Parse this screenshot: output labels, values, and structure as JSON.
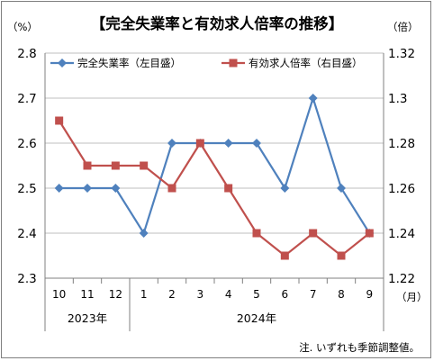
{
  "chart_data": {
    "type": "line",
    "title": "【完全失業率と有効求人倍率の推移】",
    "left_unit": "（%）",
    "right_unit": "（倍）",
    "x_unit": "（月）",
    "categories": [
      "10",
      "11",
      "12",
      "1",
      "2",
      "3",
      "4",
      "5",
      "6",
      "7",
      "8",
      "9"
    ],
    "year_labels": [
      {
        "label": "2023年",
        "start_index": 0,
        "end_index": 2
      },
      {
        "label": "2024年",
        "start_index": 3,
        "end_index": 11
      }
    ],
    "left_axis": {
      "range": [
        2.3,
        2.8
      ],
      "ticks": [
        "2.3",
        "2.4",
        "2.5",
        "2.6",
        "2.7",
        "2.8"
      ]
    },
    "right_axis": {
      "range": [
        1.22,
        1.32
      ],
      "ticks": [
        "1.22",
        "1.24",
        "1.26",
        "1.28",
        "1.3",
        "1.32"
      ]
    },
    "series": [
      {
        "name": "完全失業率（左目盛）",
        "axis": "left",
        "color": "#4f81bd",
        "marker": "diamond",
        "values": [
          2.5,
          2.5,
          2.5,
          2.4,
          2.6,
          2.6,
          2.6,
          2.6,
          2.5,
          2.7,
          2.5,
          2.4
        ]
      },
      {
        "name": "有効求人倍率（右目盛）",
        "axis": "right",
        "color": "#c0504d",
        "marker": "square",
        "values": [
          1.29,
          1.27,
          1.27,
          1.27,
          1.26,
          1.28,
          1.26,
          1.24,
          1.23,
          1.24,
          1.23,
          1.24
        ]
      }
    ],
    "grid": true,
    "legend_position": "top",
    "note": "注. いずれも季節調整値。"
  }
}
